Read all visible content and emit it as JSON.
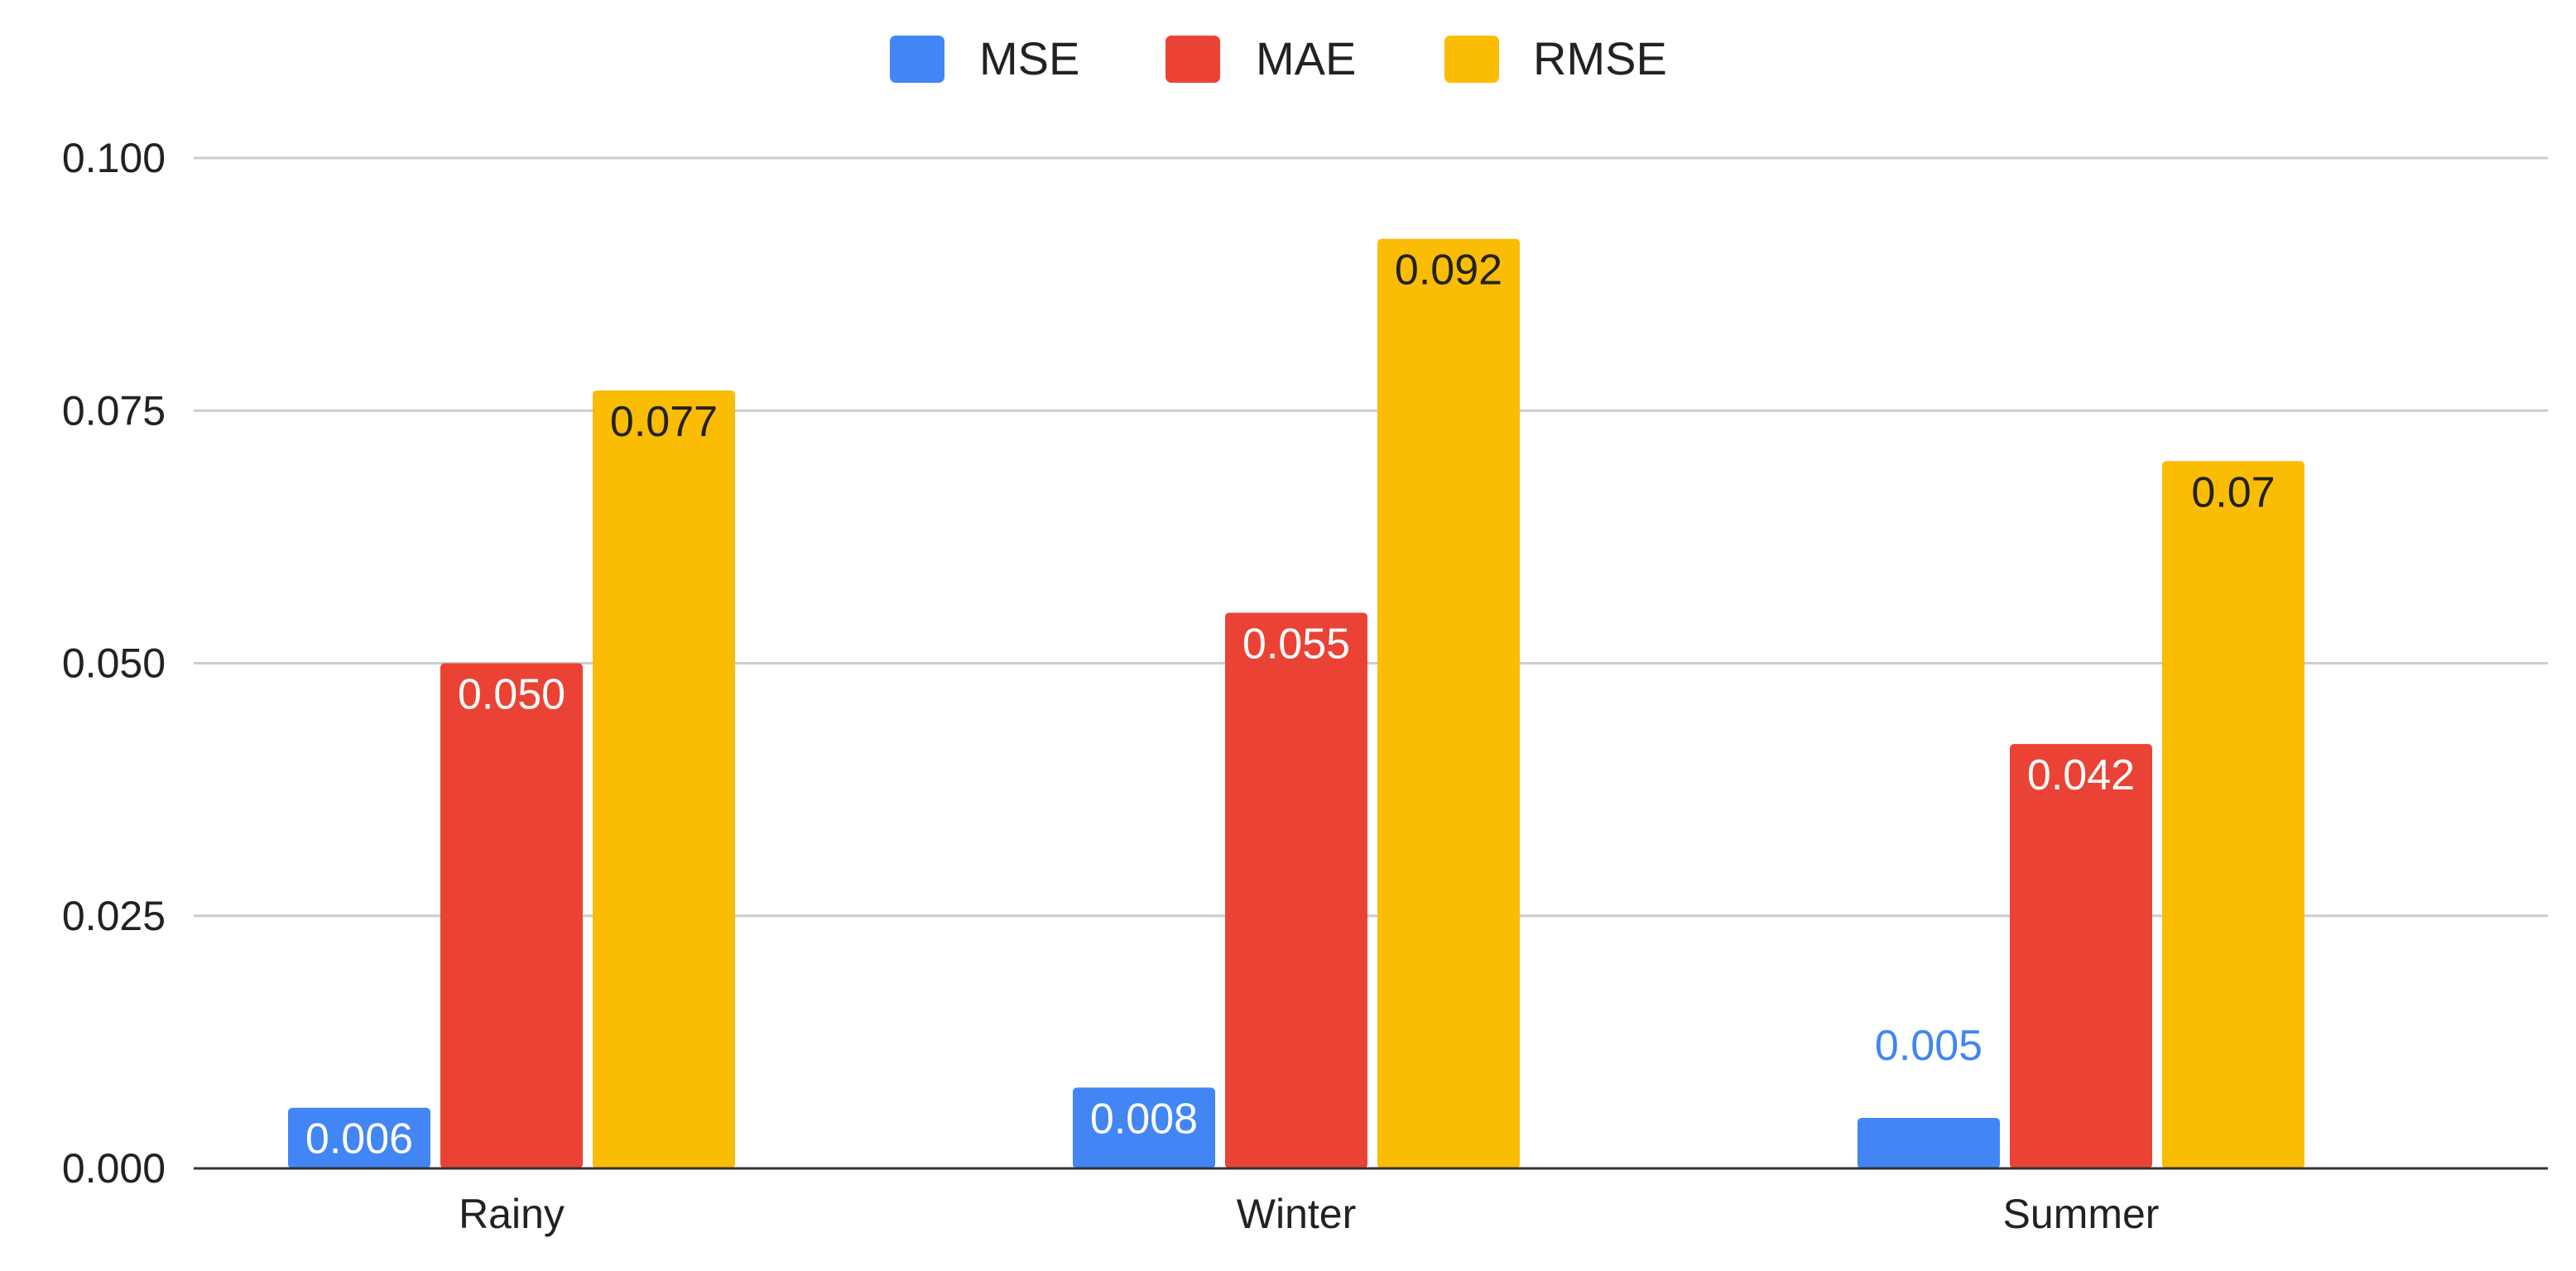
{
  "chart_data": {
    "type": "bar",
    "title": "",
    "xlabel": "",
    "ylabel": "",
    "categories": [
      "Rainy",
      "Winter",
      "Summer"
    ],
    "series": [
      {
        "name": "MSE",
        "values": [
          0.006,
          0.008,
          0.005
        ],
        "labels": [
          "0.006",
          "0.008",
          "0.005"
        ],
        "color": "#4285F4"
      },
      {
        "name": "MAE",
        "values": [
          0.05,
          0.055,
          0.042
        ],
        "labels": [
          "0.050",
          "0.055",
          "0.042"
        ],
        "color": "#EA4335"
      },
      {
        "name": "RMSE",
        "values": [
          0.077,
          0.092,
          0.07
        ],
        "labels": [
          "0.077",
          "0.092",
          "0.07"
        ],
        "color": "#FBBC04"
      }
    ],
    "ylim": [
      0,
      0.1
    ],
    "yticks": [
      0,
      0.025,
      0.05,
      0.075,
      0.1
    ],
    "ytick_labels": [
      "0.000",
      "0.025",
      "0.050",
      "0.075",
      "0.100"
    ],
    "grid": true,
    "legend_position": "top-center"
  }
}
